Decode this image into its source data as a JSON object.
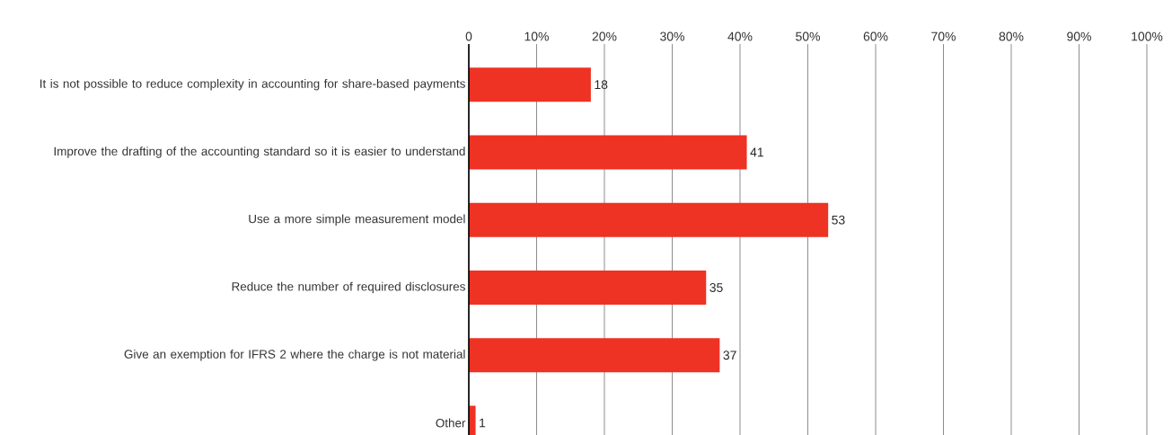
{
  "chart_data": {
    "type": "bar",
    "orientation": "horizontal",
    "categories": [
      "It is not possible to reduce complexity in accounting for share-based payments",
      "Improve the drafting of the accounting standard so it is easier to understand",
      "Use a more simple measurement model",
      "Reduce the number of required disclosures",
      "Give an exemption for IFRS 2 where the charge is not material",
      "Other"
    ],
    "values": [
      18,
      41,
      53,
      35,
      37,
      1
    ],
    "color": "#ee3224",
    "xlim": [
      0,
      100
    ],
    "xticks": [
      0,
      {
        "value": 10,
        "label": "10%"
      },
      {
        "value": 20,
        "label": "20%"
      },
      {
        "value": 30,
        "label": "30%"
      },
      {
        "value": 40,
        "label": "40%"
      },
      {
        "value": 50,
        "label": "50%"
      },
      {
        "value": 60,
        "label": "60%"
      },
      {
        "value": 70,
        "label": "70%"
      },
      {
        "value": 80,
        "label": "80%"
      },
      {
        "value": 90,
        "label": "90%"
      },
      {
        "value": 100,
        "label": "100%"
      }
    ],
    "grid": "x",
    "data_labels": true
  }
}
